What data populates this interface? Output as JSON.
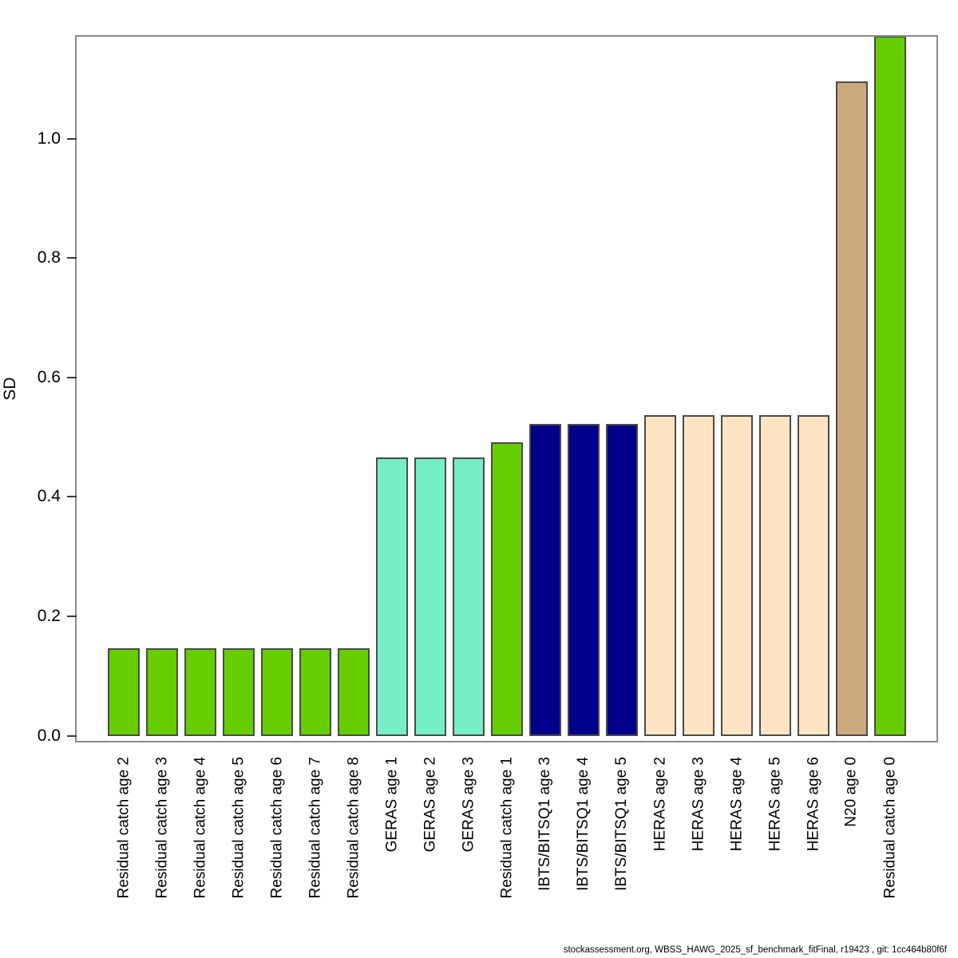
{
  "chart_data": {
    "type": "bar",
    "title": "",
    "xlabel": "",
    "ylabel": "SD",
    "categories": [
      "Residual catch age 2",
      "Residual catch age 3",
      "Residual catch age 4",
      "Residual catch age 5",
      "Residual catch age 6",
      "Residual catch age 7",
      "Residual catch age 8",
      "GERAS age 1",
      "GERAS age 2",
      "GERAS age 3",
      "Residual catch age 1",
      "IBTS/BITSQ1 age 3",
      "IBTS/BITSQ1 age 4",
      "IBTS/BITSQ1 age 5",
      "HERAS age 2",
      "HERAS age 3",
      "HERAS age 4",
      "HERAS age 5",
      "HERAS age 6",
      "N20 age 0",
      "Residual catch age 0"
    ],
    "values": [
      0.146,
      0.146,
      0.146,
      0.146,
      0.146,
      0.146,
      0.146,
      0.466,
      0.466,
      0.466,
      0.491,
      0.522,
      0.522,
      0.522,
      0.537,
      0.537,
      0.537,
      0.537,
      0.537,
      1.096,
      1.172
    ],
    "colors": [
      "#66CD00",
      "#66CD00",
      "#66CD00",
      "#66CD00",
      "#66CD00",
      "#66CD00",
      "#66CD00",
      "#76EEC6",
      "#76EEC6",
      "#76EEC6",
      "#66CD00",
      "#00008B",
      "#00008B",
      "#00008B",
      "#FFE4C4",
      "#FFE4C4",
      "#FFE4C4",
      "#FFE4C4",
      "#FFE4C4",
      "#CDAA7D",
      "#66CD00"
    ],
    "y_ticks": [
      0.0,
      0.2,
      0.4,
      0.6,
      0.8,
      1.0
    ],
    "y_tick_labels": [
      "0.0",
      "0.2",
      "0.4",
      "0.6",
      "0.8",
      "1.0"
    ],
    "ylim": [
      0,
      1.17
    ],
    "grid": false,
    "legend": "none",
    "last_bar_clipped_at_top": true
  },
  "footer": {
    "credit": "stockassessment.org, WBSS_HAWG_2025_sf_benchmark_fitFinal, r19423 , git: 1cc464b80f6f"
  }
}
